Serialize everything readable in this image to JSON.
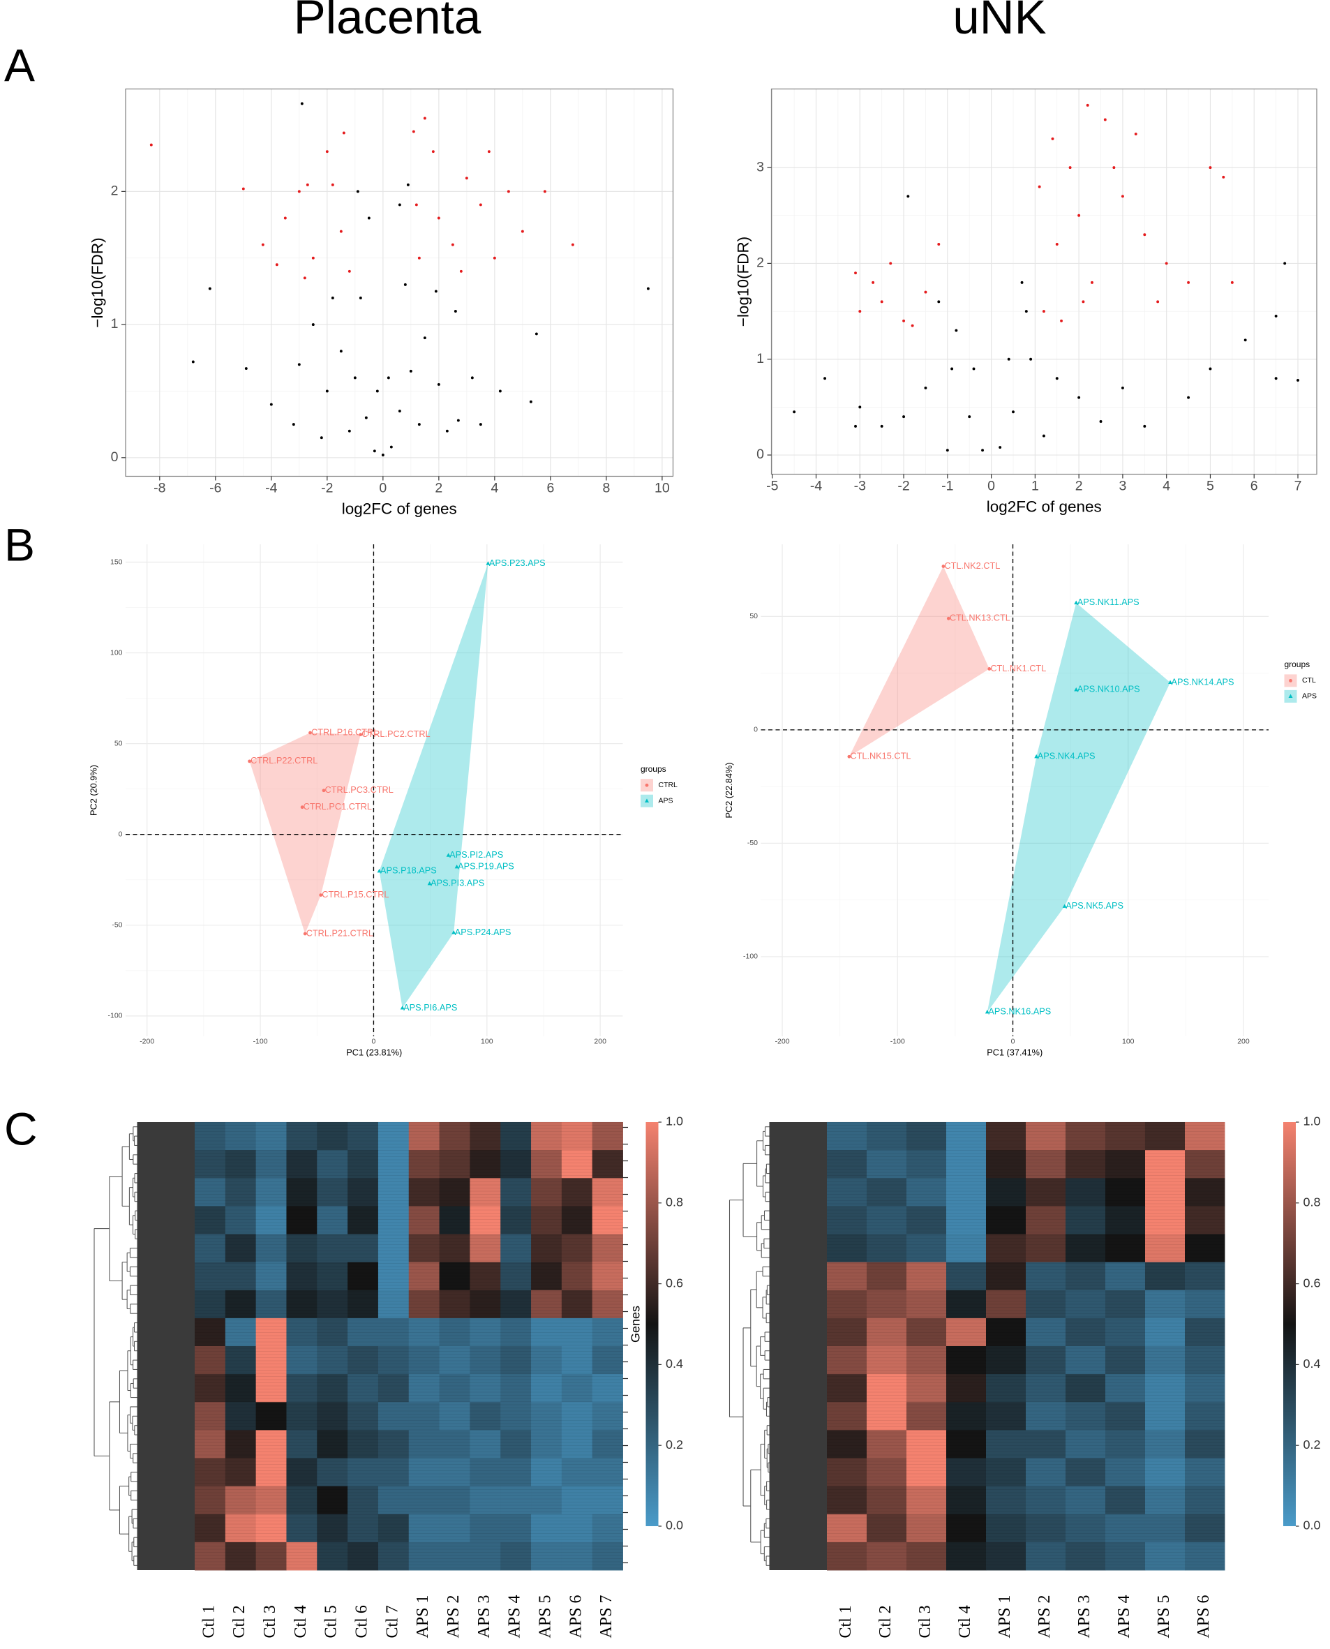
{
  "column_titles": [
    "Placenta",
    "uNK"
  ],
  "panel_labels": [
    "A",
    "B",
    "C"
  ],
  "chart_data": [
    {
      "type": "volcano",
      "xlabel": "log2FC of genes",
      "ylabel": "−log10(FDR)",
      "xlim": [
        -9.22,
        10.39
      ],
      "ylim": [
        -0.14,
        2.77
      ],
      "xticks": [
        -8,
        -6,
        -4,
        -2,
        0,
        2,
        4,
        6,
        8,
        10
      ],
      "yticks": [
        0,
        1,
        2
      ],
      "grid": true,
      "series": [
        {
          "color": "#000000",
          "x": [
            -0.3,
            0.3,
            -0.6,
            0.6,
            -1,
            1,
            -1.5,
            1.5,
            -2,
            2,
            -0.8,
            0.8,
            -0.5,
            0.6,
            -2.5,
            2.6,
            -3,
            3.2,
            -1.2,
            1.3,
            -4,
            4.2,
            -6.8,
            -6.2,
            9.5,
            5.5,
            5.3,
            -4.9,
            -0.2,
            0.2,
            -1.8,
            1.9,
            3.5,
            -3.2,
            2.7,
            -0.9,
            0.9,
            -2.2,
            2.3,
            0,
            -2.9
          ],
          "values": [
            0.05,
            0.08,
            0.3,
            0.35,
            0.6,
            0.65,
            0.8,
            0.9,
            0.5,
            0.55,
            1.2,
            1.3,
            1.8,
            1.9,
            1.0,
            1.1,
            0.7,
            0.6,
            0.2,
            0.25,
            0.4,
            0.5,
            0.72,
            1.27,
            1.27,
            0.93,
            0.42,
            0.67,
            0.5,
            0.6,
            1.2,
            1.25,
            0.25,
            0.25,
            0.28,
            2.0,
            2.05,
            0.15,
            0.2,
            0.02,
            2.66
          ]
        },
        {
          "color": "#e41a1c",
          "x": [
            -8.3,
            -5,
            -4.3,
            -3.5,
            -3,
            -2.5,
            -2,
            -1.5,
            -1.2,
            -2.8,
            -1.8,
            -3.8,
            1.1,
            1.5,
            2,
            2.5,
            3,
            3.5,
            4,
            4.5,
            5,
            5.8,
            6.8,
            1.3,
            1.8,
            2.8,
            3.8,
            1.2,
            -1.4,
            -2.7
          ],
          "values": [
            2.35,
            2.02,
            1.6,
            1.8,
            2.0,
            1.5,
            2.3,
            1.7,
            1.4,
            1.35,
            2.05,
            1.45,
            2.45,
            2.55,
            1.8,
            1.6,
            2.1,
            1.9,
            1.5,
            2.0,
            1.7,
            2.0,
            1.6,
            1.5,
            2.3,
            1.4,
            2.3,
            1.9,
            2.44,
            2.05
          ]
        }
      ]
    },
    {
      "type": "volcano",
      "xlabel": "log2FC of genes",
      "ylabel": "−log10(FDR)",
      "xlim": [
        -5.02,
        7.43
      ],
      "ylim": [
        -0.2,
        3.82
      ],
      "xticks": [
        -5,
        -4,
        -3,
        -2,
        -1,
        0,
        1,
        2,
        3,
        4,
        5,
        6,
        7
      ],
      "yticks": [
        0,
        1,
        2,
        3
      ],
      "grid": true,
      "series": [
        {
          "color": "#000000",
          "x": [
            -0.2,
            0.2,
            -0.5,
            0.5,
            -0.9,
            0.9,
            -1.5,
            1.5,
            -2,
            2,
            -0.8,
            0.8,
            -3,
            3,
            -4.5,
            -3.8,
            4.5,
            5,
            6.5,
            7,
            -1,
            1.2,
            -2.5,
            2.5,
            -1.2,
            0.7,
            -3.1,
            3.5,
            -0.4,
            0.4,
            5.8,
            6.5,
            6.7,
            -1.9
          ],
          "values": [
            0.05,
            0.08,
            0.4,
            0.45,
            0.9,
            1.0,
            0.7,
            0.8,
            0.4,
            0.6,
            1.3,
            1.5,
            0.5,
            0.7,
            0.45,
            0.8,
            0.6,
            0.9,
            0.8,
            0.78,
            0.05,
            0.2,
            0.3,
            0.35,
            1.6,
            1.8,
            0.3,
            0.3,
            0.9,
            1.0,
            1.2,
            1.45,
            2.0,
            2.7
          ]
        },
        {
          "color": "#e41a1c",
          "x": [
            -3,
            -2.7,
            -2.3,
            -2,
            -1.5,
            -1.2,
            -2.5,
            -3.1,
            -1.8,
            1.2,
            1.5,
            1.8,
            2,
            2.3,
            2.6,
            2.8,
            3,
            3.3,
            3.5,
            4,
            4.5,
            5,
            5.3,
            1.1,
            1.4,
            2.2,
            1.6,
            3.8,
            5.5,
            2.1
          ],
          "values": [
            1.5,
            1.8,
            2.0,
            1.4,
            1.7,
            2.2,
            1.6,
            1.9,
            1.35,
            1.5,
            2.2,
            3.0,
            2.5,
            1.8,
            3.5,
            3.0,
            2.7,
            3.35,
            2.3,
            2.0,
            1.8,
            3.0,
            2.9,
            2.8,
            3.3,
            3.65,
            1.4,
            1.6,
            1.8,
            1.6
          ]
        }
      ]
    },
    {
      "type": "pca",
      "xlabel": "PC1 (23.81%)",
      "ylabel": "PC2 (20.9%)",
      "legend_title": "groups",
      "xlim": [
        -218.9,
        219.9
      ],
      "ylim": [
        -111.2,
        159.8
      ],
      "xticks": [
        -200,
        -100,
        0,
        100,
        200
      ],
      "yticks": [
        -100,
        -50,
        0,
        50,
        100,
        150
      ],
      "grid": true,
      "series": [
        {
          "name": "CTRL",
          "color": "#f8766d",
          "shape": "circle",
          "x": [
            -56,
            -11.5,
            -109.5,
            -44,
            -63,
            -46.6,
            -60.5
          ],
          "values": [
            56,
            55,
            40.3,
            24.2,
            15,
            -33.4,
            -54.7
          ],
          "labels": [
            "CTRL.P16.CTRL",
            "CTRL.PC2.CTRL",
            "CTRL.P22.CTRL",
            "CTRL.PC3.CTRL",
            "CTRL.PC1.CTRL",
            "CTRL.P15.CTRL",
            "CTRL.P21.CTRL"
          ]
        },
        {
          "name": "APS",
          "color": "#00bfc4",
          "shape": "triangle",
          "x": [
            101,
            66,
            73.4,
            5,
            49.4,
            70.7,
            25.4
          ],
          "values": [
            149.2,
            -11.5,
            -17.9,
            -20.2,
            -27.1,
            -54.1,
            -95.6
          ],
          "labels": [
            "APS.P23.APS",
            "APS.PI2.APS",
            "APS.P19.APS",
            "APS.P18.APS",
            "APS.PI3.APS",
            "APS.P24.APS",
            "APS.PI6.APS"
          ]
        }
      ]
    },
    {
      "type": "pca",
      "xlabel": "PC1 (37.41%)",
      "ylabel": "PC2 (22.84%)",
      "legend_title": "groups",
      "xlim": [
        -218.5,
        221.8
      ],
      "ylim": [
        -135.1,
        81.8
      ],
      "xticks": [
        -200,
        -100,
        0,
        100,
        200
      ],
      "yticks": [
        -100,
        -50,
        0,
        50
      ],
      "grid": true,
      "series": [
        {
          "name": "CTL",
          "color": "#f8766d",
          "shape": "circle",
          "x": [
            -60.3,
            -55.8,
            -20.4,
            -142
          ],
          "values": [
            72.1,
            49.1,
            26.9,
            -11.8
          ],
          "labels": [
            "CTL.NK2.CTL",
            "CTL.NK13.CTL",
            "CTL.NK1.CTL",
            "CTL.NK15.CTL"
          ]
        },
        {
          "name": "APS",
          "color": "#00bfc4",
          "shape": "triangle",
          "x": [
            54.9,
            136.5,
            54.9,
            20.4,
            44.9,
            -22.2
          ],
          "values": [
            56,
            20.9,
            17.7,
            -11.8,
            -77.8,
            -124.4
          ],
          "labels": [
            "APS.NK11.APS",
            "APS.NK14.APS",
            "APS.NK10.APS",
            "APS.NK4.APS",
            "APS.NK5.APS",
            "APS.NK16.APS"
          ]
        }
      ]
    },
    {
      "type": "heatmap",
      "colorbar_label": "Genes",
      "clim": [
        0,
        1
      ],
      "colors": [
        "#4a9bc9",
        "#141414",
        "#f4826f"
      ],
      "colorbar_ticks": [
        {
          "value": 0,
          "label": "0.0"
        },
        0.2,
        0.4,
        0.6,
        0.8,
        {
          "value": 1,
          "label": "1.0"
        }
      ],
      "columns": [
        "Ctl 1",
        "Ctl 2",
        "Ctl 3",
        "Ctl 4",
        "Ctl 5",
        "Ctl 6",
        "Ctl 7",
        "APS 1",
        "APS 2",
        "APS 3",
        "APS 4",
        "APS 5",
        "APS 6",
        "APS 7"
      ],
      "values": [
        [
          0.25,
          0.2,
          0.15,
          0.3,
          0.35,
          0.3,
          0.08,
          0.85,
          0.7,
          0.6,
          0.35,
          0.9,
          0.95,
          0.8
        ],
        [
          0.3,
          0.35,
          0.2,
          0.4,
          0.25,
          0.35,
          0.08,
          0.7,
          0.65,
          0.55,
          0.4,
          0.8,
          1.0,
          0.6
        ],
        [
          0.2,
          0.3,
          0.15,
          0.45,
          0.3,
          0.4,
          0.08,
          0.6,
          0.55,
          0.95,
          0.3,
          0.7,
          0.6,
          0.95
        ],
        [
          0.35,
          0.25,
          0.1,
          0.5,
          0.2,
          0.45,
          0.08,
          0.75,
          0.45,
          1.0,
          0.35,
          0.65,
          0.55,
          1.0
        ],
        [
          0.25,
          0.4,
          0.2,
          0.35,
          0.3,
          0.3,
          0.08,
          0.65,
          0.6,
          0.9,
          0.25,
          0.6,
          0.65,
          0.85
        ],
        [
          0.3,
          0.3,
          0.15,
          0.4,
          0.35,
          0.5,
          0.08,
          0.8,
          0.5,
          0.6,
          0.3,
          0.55,
          0.7,
          0.9
        ],
        [
          0.35,
          0.45,
          0.25,
          0.45,
          0.4,
          0.45,
          0.1,
          0.7,
          0.6,
          0.55,
          0.4,
          0.75,
          0.6,
          0.8
        ],
        [
          0.55,
          0.15,
          1.0,
          0.25,
          0.3,
          0.2,
          0.2,
          0.15,
          0.2,
          0.15,
          0.2,
          0.1,
          0.1,
          0.15
        ],
        [
          0.7,
          0.35,
          1.0,
          0.2,
          0.25,
          0.3,
          0.25,
          0.2,
          0.15,
          0.2,
          0.25,
          0.15,
          0.1,
          0.2
        ],
        [
          0.6,
          0.45,
          1.0,
          0.3,
          0.35,
          0.25,
          0.3,
          0.15,
          0.2,
          0.15,
          0.2,
          0.1,
          0.15,
          0.1
        ],
        [
          0.75,
          0.4,
          0.5,
          0.35,
          0.4,
          0.3,
          0.2,
          0.2,
          0.15,
          0.25,
          0.2,
          0.15,
          0.1,
          0.15
        ],
        [
          0.8,
          0.55,
          1.0,
          0.3,
          0.45,
          0.35,
          0.3,
          0.2,
          0.2,
          0.15,
          0.25,
          0.15,
          0.1,
          0.2
        ],
        [
          0.65,
          0.6,
          1.0,
          0.4,
          0.3,
          0.25,
          0.25,
          0.15,
          0.15,
          0.2,
          0.2,
          0.1,
          0.15,
          0.15
        ],
        [
          0.7,
          0.85,
          0.9,
          0.35,
          0.5,
          0.3,
          0.2,
          0.2,
          0.2,
          0.15,
          0.15,
          0.15,
          0.1,
          0.1
        ],
        [
          0.6,
          0.95,
          1.0,
          0.3,
          0.4,
          0.3,
          0.35,
          0.15,
          0.15,
          0.2,
          0.2,
          0.1,
          0.1,
          0.15
        ],
        [
          0.75,
          0.6,
          0.7,
          0.95,
          0.35,
          0.4,
          0.3,
          0.2,
          0.2,
          0.2,
          0.25,
          0.15,
          0.15,
          0.2
        ]
      ]
    },
    {
      "type": "heatmap",
      "clim": [
        0,
        1
      ],
      "colors": [
        "#4a9bc9",
        "#141414",
        "#f4826f"
      ],
      "colorbar_ticks": [
        {
          "value": 0,
          "label": "0.0"
        },
        0.2,
        0.4,
        0.6,
        0.8,
        {
          "value": 1,
          "label": "1.0"
        }
      ],
      "columns": [
        "Ctl 1",
        "Ctl 2",
        "Ctl 3",
        "Ctl 4",
        "APS 1",
        "APS 2",
        "APS 3",
        "APS 4",
        "APS 5",
        "APS 6"
      ],
      "values": [
        [
          0.2,
          0.25,
          0.3,
          0.08,
          0.6,
          0.85,
          0.7,
          0.65,
          0.6,
          0.9
        ],
        [
          0.3,
          0.2,
          0.25,
          0.08,
          0.55,
          0.75,
          0.6,
          0.55,
          1.0,
          0.7
        ],
        [
          0.25,
          0.3,
          0.2,
          0.08,
          0.45,
          0.6,
          0.4,
          0.5,
          1.0,
          0.55
        ],
        [
          0.3,
          0.25,
          0.3,
          0.08,
          0.5,
          0.7,
          0.35,
          0.45,
          1.0,
          0.6
        ],
        [
          0.35,
          0.3,
          0.25,
          0.1,
          0.6,
          0.65,
          0.45,
          0.5,
          0.95,
          0.5
        ],
        [
          0.8,
          0.7,
          0.85,
          0.3,
          0.55,
          0.25,
          0.3,
          0.2,
          0.35,
          0.3
        ],
        [
          0.7,
          0.75,
          0.8,
          0.45,
          0.7,
          0.3,
          0.25,
          0.3,
          0.15,
          0.2
        ],
        [
          0.65,
          0.85,
          0.7,
          0.9,
          0.5,
          0.2,
          0.3,
          0.25,
          0.1,
          0.3
        ],
        [
          0.75,
          0.9,
          0.8,
          0.5,
          0.45,
          0.3,
          0.2,
          0.3,
          0.15,
          0.25
        ],
        [
          0.6,
          1.0,
          0.85,
          0.55,
          0.35,
          0.25,
          0.35,
          0.2,
          0.1,
          0.2
        ],
        [
          0.7,
          1.0,
          0.75,
          0.45,
          0.4,
          0.2,
          0.25,
          0.3,
          0.1,
          0.25
        ],
        [
          0.55,
          0.8,
          1.0,
          0.5,
          0.3,
          0.3,
          0.2,
          0.25,
          0.15,
          0.3
        ],
        [
          0.65,
          0.75,
          1.0,
          0.4,
          0.35,
          0.2,
          0.3,
          0.2,
          0.1,
          0.2
        ],
        [
          0.6,
          0.7,
          0.9,
          0.45,
          0.3,
          0.25,
          0.2,
          0.3,
          0.15,
          0.25
        ],
        [
          0.9,
          0.65,
          0.85,
          0.5,
          0.35,
          0.3,
          0.25,
          0.2,
          0.2,
          0.3
        ],
        [
          0.7,
          0.75,
          0.7,
          0.45,
          0.4,
          0.25,
          0.3,
          0.25,
          0.15,
          0.2
        ]
      ]
    }
  ]
}
